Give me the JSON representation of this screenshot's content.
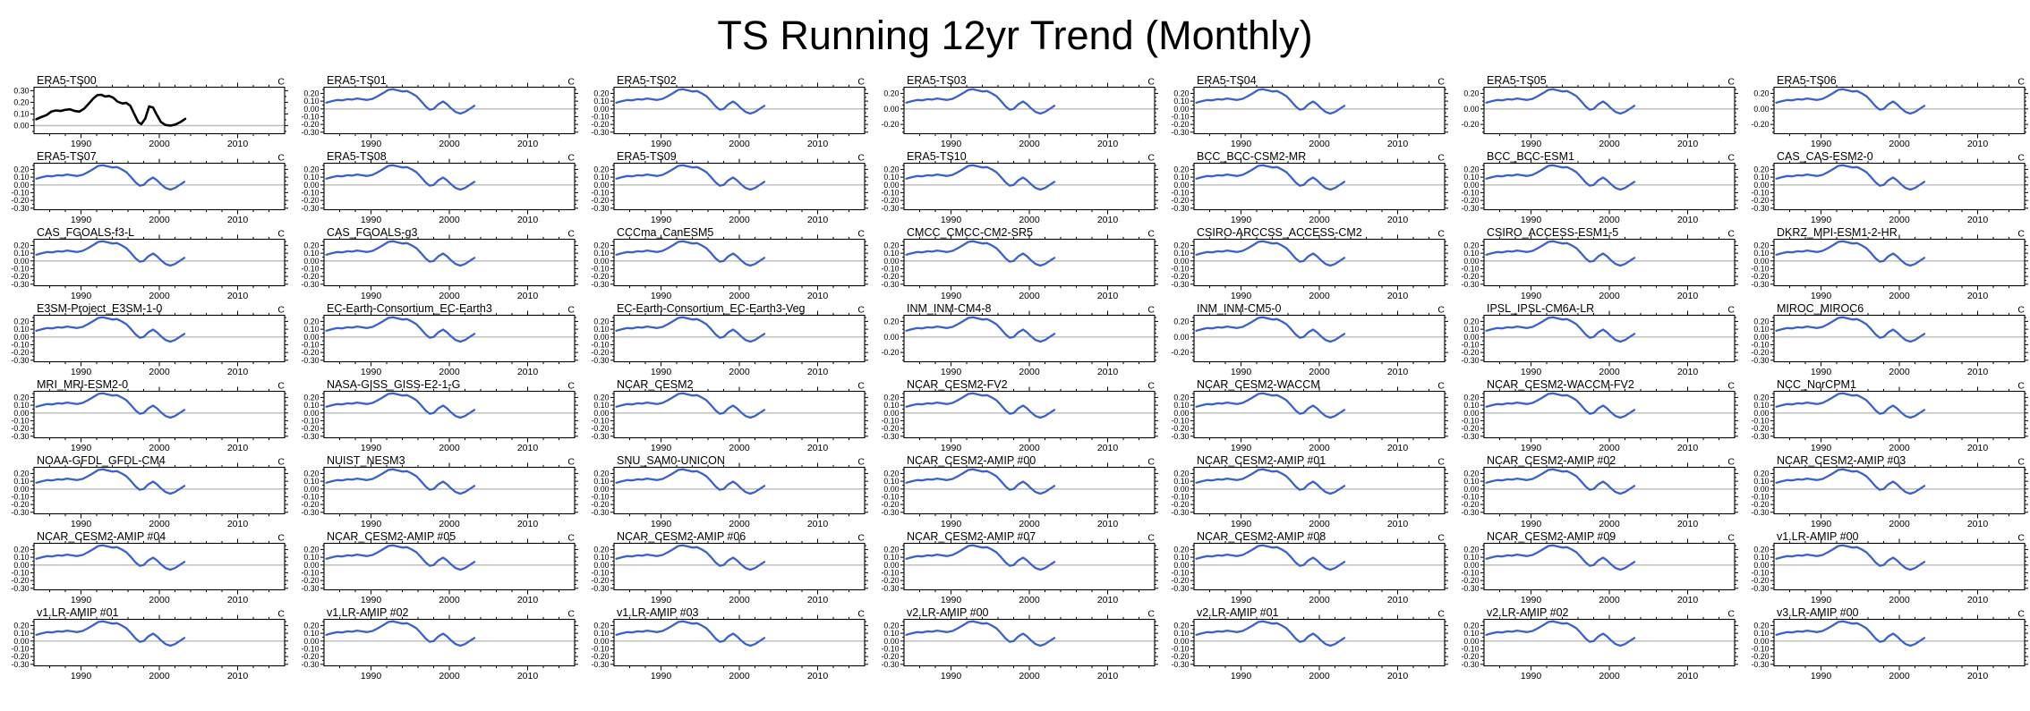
{
  "title": "TS Running 12yr Trend (Monthly)",
  "unit_label": "C",
  "colors": {
    "obs_line": "#000000",
    "model_line": "#3b62cc",
    "zero_line": "#bbbbbb",
    "frame": "#000000",
    "background": "#ffffff"
  },
  "axes": {
    "xtick_labels": [
      "1990",
      "2000",
      "2010"
    ],
    "ytick_variants": {
      "obs": [
        "0.30",
        "0.20",
        "0.10",
        "0.00"
      ],
      "dense": [
        "0.20",
        "0.10",
        "0.00",
        "-0.10",
        "-0.20",
        "-0.30"
      ],
      "sparse": [
        "0.20",
        "0.00",
        "-0.20"
      ]
    }
  },
  "panels": [
    {
      "label": "ERA5-TS00",
      "variant": "obs",
      "line": "obs"
    },
    {
      "label": "ERA5-TS01",
      "variant": "dense",
      "line": "model"
    },
    {
      "label": "ERA5-TS02",
      "variant": "dense",
      "line": "model"
    },
    {
      "label": "ERA5-TS03",
      "variant": "sparse",
      "line": "model"
    },
    {
      "label": "ERA5-TS04",
      "variant": "dense",
      "line": "model"
    },
    {
      "label": "ERA5-TS05",
      "variant": "sparse",
      "line": "model"
    },
    {
      "label": "ERA5-TS06",
      "variant": "sparse",
      "line": "model"
    },
    {
      "label": "ERA5-TS07",
      "variant": "dense",
      "line": "model"
    },
    {
      "label": "ERA5-TS08",
      "variant": "dense",
      "line": "model"
    },
    {
      "label": "ERA5-TS09",
      "variant": "dense",
      "line": "model"
    },
    {
      "label": "ERA5-TS10",
      "variant": "dense",
      "line": "model"
    },
    {
      "label": "BCC_BCC-CSM2-MR",
      "variant": "dense",
      "line": "model"
    },
    {
      "label": "BCC_BCC-ESM1",
      "variant": "dense",
      "line": "model"
    },
    {
      "label": "CAS_CAS-ESM2-0",
      "variant": "dense",
      "line": "model"
    },
    {
      "label": "CAS_FGOALS-f3-L",
      "variant": "dense",
      "line": "model"
    },
    {
      "label": "CAS_FGOALS-g3",
      "variant": "dense",
      "line": "model"
    },
    {
      "label": "CCCma_CanESM5",
      "variant": "dense",
      "line": "model"
    },
    {
      "label": "CMCC_CMCC-CM2-SR5",
      "variant": "dense",
      "line": "model"
    },
    {
      "label": "CSIRO-ARCCSS_ACCESS-CM2",
      "variant": "dense",
      "line": "model"
    },
    {
      "label": "CSIRO_ACCESS-ESM1-5",
      "variant": "dense",
      "line": "model"
    },
    {
      "label": "DKRZ_MPI-ESM1-2-HR",
      "variant": "dense",
      "line": "model"
    },
    {
      "label": "E3SM-Project_E3SM-1-0",
      "variant": "dense",
      "line": "model"
    },
    {
      "label": "EC-Earth-Consortium_EC-Earth3",
      "variant": "dense",
      "line": "model"
    },
    {
      "label": "EC-Earth-Consortium_EC-Earth3-Veg",
      "variant": "dense",
      "line": "model"
    },
    {
      "label": "INM_INM-CM4-8",
      "variant": "sparse",
      "line": "model"
    },
    {
      "label": "INM_INM-CM5-0",
      "variant": "sparse",
      "line": "model"
    },
    {
      "label": "IPSL_IPSL-CM6A-LR",
      "variant": "dense",
      "line": "model"
    },
    {
      "label": "MIROC_MIROC6",
      "variant": "dense",
      "line": "model"
    },
    {
      "label": "MRI_MRI-ESM2-0",
      "variant": "dense",
      "line": "model"
    },
    {
      "label": "NASA-GISS_GISS-E2-1-G",
      "variant": "dense",
      "line": "model"
    },
    {
      "label": "NCAR_CESM2",
      "variant": "dense",
      "line": "model"
    },
    {
      "label": "NCAR_CESM2-FV2",
      "variant": "dense",
      "line": "model"
    },
    {
      "label": "NCAR_CESM2-WACCM",
      "variant": "dense",
      "line": "model"
    },
    {
      "label": "NCAR_CESM2-WACCM-FV2",
      "variant": "dense",
      "line": "model"
    },
    {
      "label": "NCC_NorCPM1",
      "variant": "dense",
      "line": "model"
    },
    {
      "label": "NOAA-GFDL_GFDL-CM4",
      "variant": "dense",
      "line": "model"
    },
    {
      "label": "NUIST_NESM3",
      "variant": "dense",
      "line": "model"
    },
    {
      "label": "SNU_SAM0-UNICON",
      "variant": "dense",
      "line": "model"
    },
    {
      "label": "NCAR_CESM2-AMIP #00",
      "variant": "dense",
      "line": "model"
    },
    {
      "label": "NCAR_CESM2-AMIP #01",
      "variant": "dense",
      "line": "model"
    },
    {
      "label": "NCAR_CESM2-AMIP #02",
      "variant": "dense",
      "line": "model"
    },
    {
      "label": "NCAR_CESM2-AMIP #03",
      "variant": "dense",
      "line": "model"
    },
    {
      "label": "NCAR_CESM2-AMIP #04",
      "variant": "dense",
      "line": "model"
    },
    {
      "label": "NCAR_CESM2-AMIP #05",
      "variant": "dense",
      "line": "model"
    },
    {
      "label": "NCAR_CESM2-AMIP #06",
      "variant": "dense",
      "line": "model"
    },
    {
      "label": "NCAR_CESM2-AMIP #07",
      "variant": "dense",
      "line": "model"
    },
    {
      "label": "NCAR_CESM2-AMIP #08",
      "variant": "dense",
      "line": "model"
    },
    {
      "label": "NCAR_CESM2-AMIP #09",
      "variant": "dense",
      "line": "model"
    },
    {
      "label": "v1.LR-AMIP #00",
      "variant": "dense",
      "line": "model"
    },
    {
      "label": "v1.LR-AMIP #01",
      "variant": "dense",
      "line": "model"
    },
    {
      "label": "v1.LR-AMIP #02",
      "variant": "dense",
      "line": "model"
    },
    {
      "label": "v1.LR-AMIP #03",
      "variant": "dense",
      "line": "model"
    },
    {
      "label": "v2.LR-AMIP #00",
      "variant": "dense",
      "line": "model"
    },
    {
      "label": "v2.LR-AMIP #01",
      "variant": "dense",
      "line": "model"
    },
    {
      "label": "v2.LR-AMIP #02",
      "variant": "dense",
      "line": "model"
    },
    {
      "label": "v3.LR-AMIP #00",
      "variant": "dense",
      "line": "model"
    }
  ],
  "chart_data": {
    "type": "line",
    "title": "TS Running 12yr Trend (Monthly)",
    "unit": "C",
    "panel_layout_rows_cols": [
      8,
      7
    ],
    "xlim": [
      1984,
      2016
    ],
    "xticks_labeled": [
      1990,
      2000,
      2010
    ],
    "xticks_minor_step_years": 2,
    "ylim_obs": [
      -0.07,
      0.33
    ],
    "ylim_model": [
      -0.32,
      0.28
    ],
    "yticks_obs": [
      0.3,
      0.2,
      0.1,
      0.0
    ],
    "yticks_dense": [
      0.2,
      0.1,
      0.0,
      -0.1,
      -0.2,
      -0.3
    ],
    "yticks_sparse": [
      0.2,
      0.0,
      -0.2
    ],
    "grid": "zero-line-only",
    "legend": "none",
    "series": [
      {
        "name": "ERA5-TS00 (observation, black line)",
        "x": [
          1984.3,
          1985.0,
          1985.6,
          1986.2,
          1986.8,
          1987.4,
          1988.0,
          1988.6,
          1989.2,
          1989.8,
          1990.4,
          1991.0,
          1991.6,
          1992.1,
          1992.6,
          1993.1,
          1993.6,
          1994.1,
          1994.7,
          1995.3,
          1995.8,
          1996.3,
          1996.8,
          1997.3,
          1997.7,
          1998.2,
          1998.7,
          1999.2,
          1999.7,
          2000.2,
          2000.8,
          2001.5,
          2002.1,
          2002.7,
          2003.3
        ],
        "y": [
          0.055,
          0.075,
          0.09,
          0.12,
          0.13,
          0.125,
          0.135,
          0.14,
          0.125,
          0.12,
          0.145,
          0.19,
          0.235,
          0.262,
          0.265,
          0.25,
          0.255,
          0.24,
          0.205,
          0.19,
          0.195,
          0.17,
          0.1,
          0.03,
          0.012,
          0.06,
          0.165,
          0.155,
          0.09,
          0.03,
          0.005,
          0.0,
          0.01,
          0.03,
          0.058
        ]
      },
      {
        "name": "Model panels (blue line, shared approximate curve)",
        "x": [
          1984.3,
          1985.0,
          1985.7,
          1986.3,
          1987.0,
          1987.6,
          1988.2,
          1988.8,
          1989.5,
          1990.2,
          1990.8,
          1991.5,
          1992.2,
          1992.8,
          1993.4,
          1994.0,
          1994.6,
          1995.2,
          1995.8,
          1996.4,
          1997.0,
          1997.5,
          1998.0,
          1998.6,
          1999.2,
          1999.7,
          2000.2,
          2000.8,
          2001.4,
          2002.0,
          2002.6,
          2003.2
        ],
        "y": [
          0.08,
          0.1,
          0.115,
          0.11,
          0.125,
          0.12,
          0.135,
          0.125,
          0.115,
          0.13,
          0.16,
          0.2,
          0.245,
          0.255,
          0.24,
          0.225,
          0.23,
          0.2,
          0.165,
          0.1,
          0.03,
          -0.01,
          0.0,
          0.06,
          0.095,
          0.06,
          0.01,
          -0.04,
          -0.06,
          -0.04,
          0.0,
          0.04
        ]
      }
    ]
  }
}
